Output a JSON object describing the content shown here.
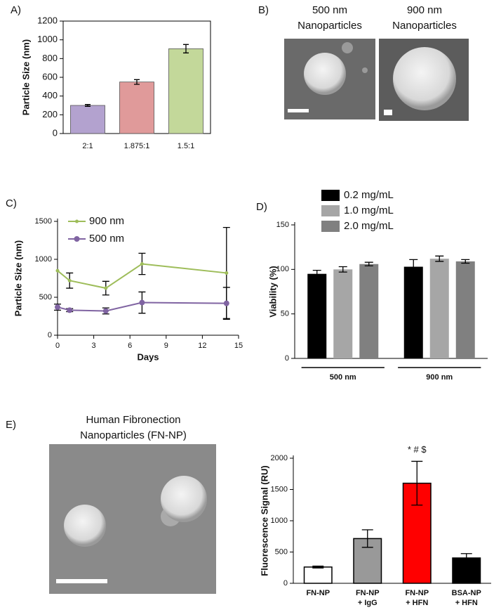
{
  "images": [
    {
      "panel_label": "B)",
      "items": [
        {
          "caption": [
            "500 nm",
            "Nanoparticles"
          ]
        },
        {
          "caption": [
            "900 nm",
            "Nanoparticles"
          ]
        }
      ]
    },
    {
      "panel_label": "E)",
      "items": [
        {
          "caption": [
            "Human Fibronection",
            "Nanoparticles (FN-NP)"
          ]
        }
      ]
    }
  ],
  "chart_data": [
    {
      "type": "bar",
      "panel_label": "A)",
      "ylabel": "Particle Size (nm)",
      "categories": [
        "2:1",
        "1.875:1",
        "1.5:1"
      ],
      "values": [
        300,
        550,
        905
      ],
      "errors": [
        10,
        25,
        45
      ],
      "colors": [
        "#b3a2cf",
        "#e09a9a",
        "#c3d89a"
      ],
      "ylim": [
        0,
        1200
      ],
      "yticks": [
        0,
        200,
        400,
        600,
        800,
        1000,
        1200
      ]
    },
    {
      "type": "line",
      "panel_label": "C)",
      "xlabel": "Days",
      "ylabel": "Particle Size (nm)",
      "x": [
        0,
        1,
        4,
        7,
        14
      ],
      "series": [
        {
          "name": "900 nm",
          "color": "#9ebd5a",
          "values": [
            850,
            720,
            620,
            940,
            820
          ],
          "errors": [
            null,
            100,
            90,
            140,
            600
          ]
        },
        {
          "name": "500 nm",
          "color": "#8064a2",
          "values": [
            370,
            330,
            320,
            430,
            420
          ],
          "errors": [
            40,
            20,
            40,
            140,
            210
          ]
        }
      ],
      "xlim": [
        0,
        15
      ],
      "xticks": [
        0,
        3,
        6,
        9,
        12,
        15
      ],
      "ylim": [
        0,
        1500
      ],
      "yticks": [
        0,
        500,
        1000,
        1500
      ]
    },
    {
      "type": "grouped_bar",
      "panel_label": "D)",
      "ylabel": "Viability (%)",
      "categories": [
        "500 nm",
        "900 nm"
      ],
      "series": [
        {
          "name": "0.2 mg/mL",
          "color": "#000000",
          "values": [
            95,
            103
          ],
          "errors": [
            4,
            8
          ]
        },
        {
          "name": "1.0 mg/mL",
          "color": "#a6a6a6",
          "values": [
            100,
            112
          ],
          "errors": [
            3,
            3
          ]
        },
        {
          "name": "2.0 mg/mL",
          "color": "#808080",
          "values": [
            106,
            109
          ],
          "errors": [
            2,
            2
          ]
        }
      ],
      "ylim": [
        0,
        150
      ],
      "yticks": [
        0,
        50,
        100,
        150
      ]
    },
    {
      "type": "bar",
      "ylabel": "Fluorescence Signal (RU)",
      "categories": [
        [
          "FN-NP"
        ],
        [
          "FN-NP",
          "+ IgG"
        ],
        [
          "FN-NP",
          "+ HFN"
        ],
        [
          "BSA-NP",
          "+ HFN"
        ]
      ],
      "values": [
        260,
        715,
        1600,
        405
      ],
      "errors": [
        15,
        140,
        350,
        70
      ],
      "colors": [
        "#ffffff",
        "#999999",
        "#ff0000",
        "#000000"
      ],
      "annotation": "* # $",
      "ylim": [
        0,
        2000
      ],
      "yticks": [
        0,
        500,
        1000,
        1500,
        2000
      ]
    }
  ]
}
